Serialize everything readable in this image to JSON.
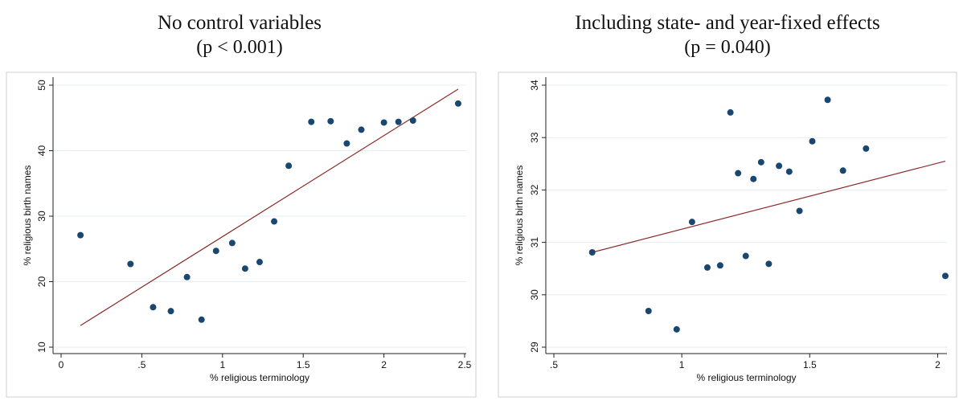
{
  "colors": {
    "point": "#1a476f",
    "fit_line": "#8b2a2a",
    "grid": "#e6eef3",
    "frame": "#cfcfcf",
    "axis": "#222222"
  },
  "chart_data": [
    {
      "type": "scatter",
      "title": "No control variables",
      "subtitle": "(p < 0.001)",
      "xlabel": "% religious terminology",
      "ylabel": "% religious birth names",
      "xlim": [
        0,
        2.5
      ],
      "ylim": [
        10,
        50
      ],
      "xticks": [
        0,
        0.5,
        1,
        1.5,
        2,
        2.5
      ],
      "xtick_labels": [
        "0",
        ".5",
        "1",
        "1.5",
        "2",
        "2.5"
      ],
      "yticks": [
        10,
        20,
        30,
        40,
        50
      ],
      "ytick_labels": [
        "10",
        "20",
        "30",
        "40",
        "50"
      ],
      "grid": true,
      "points": [
        {
          "x": 0.12,
          "y": 27.1
        },
        {
          "x": 0.43,
          "y": 22.7
        },
        {
          "x": 0.57,
          "y": 16.1
        },
        {
          "x": 0.68,
          "y": 15.5
        },
        {
          "x": 0.78,
          "y": 20.7
        },
        {
          "x": 0.87,
          "y": 14.2
        },
        {
          "x": 0.96,
          "y": 24.7
        },
        {
          "x": 1.06,
          "y": 25.9
        },
        {
          "x": 1.14,
          "y": 22.0
        },
        {
          "x": 1.23,
          "y": 23.0
        },
        {
          "x": 1.32,
          "y": 29.2
        },
        {
          "x": 1.41,
          "y": 37.7
        },
        {
          "x": 1.55,
          "y": 44.4
        },
        {
          "x": 1.67,
          "y": 44.5
        },
        {
          "x": 1.77,
          "y": 41.1
        },
        {
          "x": 1.86,
          "y": 43.2
        },
        {
          "x": 2.0,
          "y": 44.3
        },
        {
          "x": 2.09,
          "y": 44.4
        },
        {
          "x": 2.18,
          "y": 44.6
        },
        {
          "x": 2.46,
          "y": 47.2
        }
      ],
      "fit_line": {
        "x": [
          0.12,
          2.46
        ],
        "y": [
          13.3,
          49.4
        ]
      }
    },
    {
      "type": "scatter",
      "title": "Including state- and year-fixed effects",
      "subtitle": "(p = 0.040)",
      "xlabel": "% religious terminology",
      "ylabel": "% religious birth names",
      "xlim": [
        0.5,
        2.03
      ],
      "ylim": [
        29,
        34
      ],
      "xticks": [
        0.5,
        1,
        1.5,
        2
      ],
      "xtick_labels": [
        ".5",
        "1",
        "1.5",
        "2"
      ],
      "yticks": [
        29,
        30,
        31,
        32,
        33,
        34
      ],
      "ytick_labels": [
        "29",
        "30",
        "31",
        "32",
        "33",
        "34"
      ],
      "grid": true,
      "points": [
        {
          "x": 0.65,
          "y": 30.81
        },
        {
          "x": 0.87,
          "y": 29.69
        },
        {
          "x": 0.98,
          "y": 29.34
        },
        {
          "x": 1.04,
          "y": 31.39
        },
        {
          "x": 1.1,
          "y": 30.52
        },
        {
          "x": 1.15,
          "y": 30.56
        },
        {
          "x": 1.19,
          "y": 33.48
        },
        {
          "x": 1.22,
          "y": 32.32
        },
        {
          "x": 1.25,
          "y": 30.74
        },
        {
          "x": 1.28,
          "y": 32.21
        },
        {
          "x": 1.31,
          "y": 32.53
        },
        {
          "x": 1.34,
          "y": 30.59
        },
        {
          "x": 1.38,
          "y": 32.46
        },
        {
          "x": 1.42,
          "y": 32.35
        },
        {
          "x": 1.46,
          "y": 31.6
        },
        {
          "x": 1.51,
          "y": 32.93
        },
        {
          "x": 1.57,
          "y": 33.72
        },
        {
          "x": 1.63,
          "y": 32.37
        },
        {
          "x": 1.72,
          "y": 32.79
        },
        {
          "x": 2.03,
          "y": 30.36
        }
      ],
      "fit_line": {
        "x": [
          0.65,
          2.03
        ],
        "y": [
          30.81,
          32.55
        ]
      }
    }
  ]
}
